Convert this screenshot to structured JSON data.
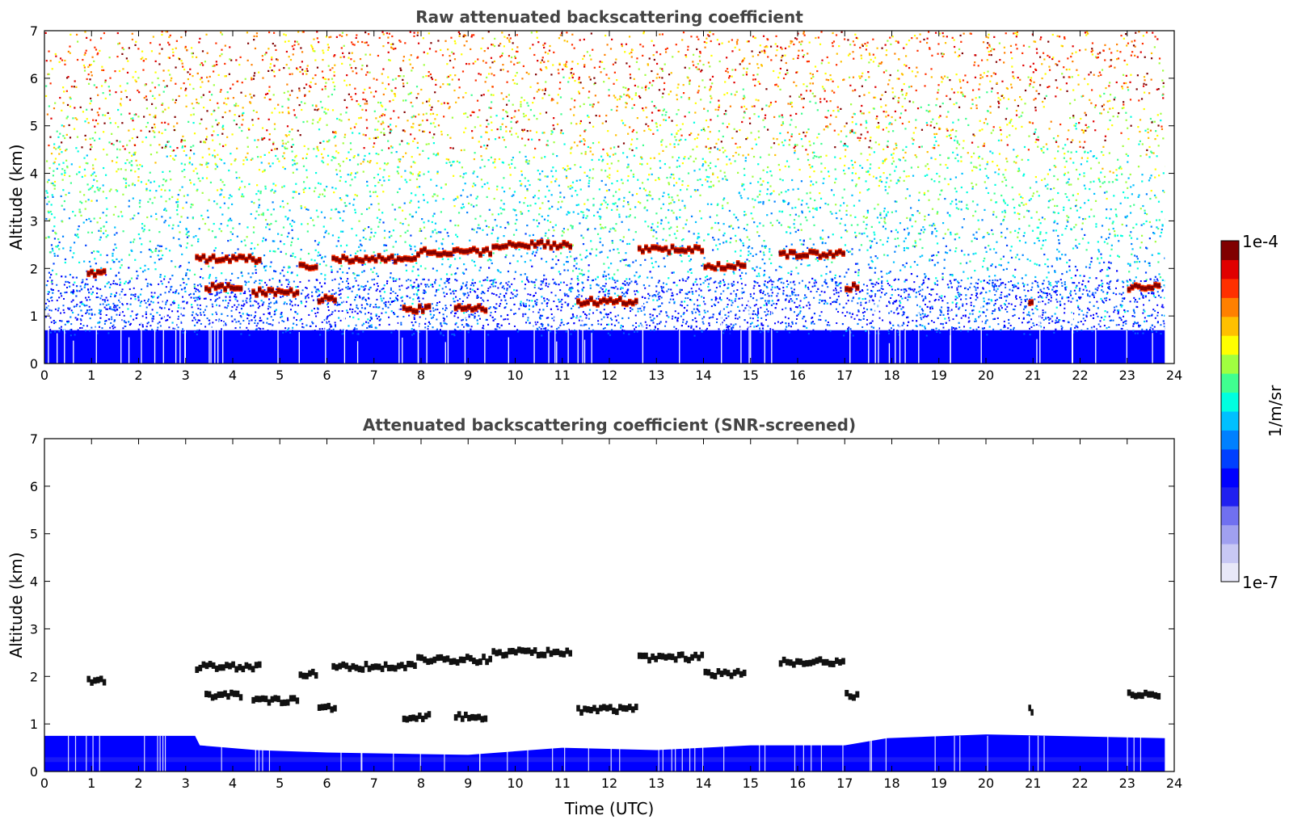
{
  "chart_data": [
    {
      "type": "heatmap",
      "title": "Raw attenuated backscattering coefficient",
      "xlabel": "",
      "ylabel": "Altitude (km)",
      "xlim": [
        0,
        24
      ],
      "ylim": [
        0,
        7
      ],
      "xticks": [
        0,
        1,
        2,
        3,
        4,
        5,
        6,
        7,
        8,
        9,
        10,
        11,
        12,
        13,
        14,
        15,
        16,
        17,
        18,
        19,
        20,
        21,
        22,
        23,
        24
      ],
      "yticks": [
        0,
        1,
        2,
        3,
        4,
        5,
        6,
        7
      ],
      "data_end_time": 23.8,
      "layers": [
        {
          "t": [
            0.9,
            1.3
          ],
          "alt": 1.9
        },
        {
          "t": [
            3.2,
            4.6
          ],
          "alt": 2.2
        },
        {
          "t": [
            5.4,
            5.8
          ],
          "alt": 2.05
        },
        {
          "t": [
            6.1,
            7.9
          ],
          "alt": 2.2
        },
        {
          "t": [
            7.9,
            9.5
          ],
          "alt": 2.35
        },
        {
          "t": [
            9.5,
            11.2
          ],
          "alt": 2.5
        },
        {
          "t": [
            12.6,
            14.0
          ],
          "alt": 2.4
        },
        {
          "t": [
            14.0,
            14.9
          ],
          "alt": 2.05
        },
        {
          "t": [
            15.6,
            17.0
          ],
          "alt": 2.3
        },
        {
          "t": [
            3.4,
            4.2
          ],
          "alt": 1.6
        },
        {
          "t": [
            4.4,
            5.4
          ],
          "alt": 1.5
        },
        {
          "t": [
            5.8,
            6.2
          ],
          "alt": 1.35
        },
        {
          "t": [
            7.6,
            8.2
          ],
          "alt": 1.15
        },
        {
          "t": [
            8.7,
            9.4
          ],
          "alt": 1.15
        },
        {
          "t": [
            11.3,
            12.6
          ],
          "alt": 1.3
        },
        {
          "t": [
            17.0,
            17.3
          ],
          "alt": 1.6
        },
        {
          "t": [
            20.9,
            21.0
          ],
          "alt": 1.3
        },
        {
          "t": [
            23.0,
            23.7
          ],
          "alt": 1.6
        }
      ]
    },
    {
      "type": "heatmap",
      "title": "Attenuated backscattering coefficient (SNR-screened)",
      "xlabel": "Time (UTC)",
      "ylabel": "Altitude (km)",
      "xlim": [
        0,
        24
      ],
      "ylim": [
        0,
        7
      ],
      "xticks": [
        0,
        1,
        2,
        3,
        4,
        5,
        6,
        7,
        8,
        9,
        10,
        11,
        12,
        13,
        14,
        15,
        16,
        17,
        18,
        19,
        20,
        21,
        22,
        23,
        24
      ],
      "yticks": [
        0,
        1,
        2,
        3,
        4,
        5,
        6,
        7
      ],
      "boundary_layer_top": [
        {
          "t": 0,
          "alt": 0.75
        },
        {
          "t": 3.2,
          "alt": 0.75
        },
        {
          "t": 3.3,
          "alt": 0.55
        },
        {
          "t": 4.5,
          "alt": 0.45
        },
        {
          "t": 6.0,
          "alt": 0.4
        },
        {
          "t": 9.0,
          "alt": 0.35
        },
        {
          "t": 11.0,
          "alt": 0.5
        },
        {
          "t": 13.0,
          "alt": 0.45
        },
        {
          "t": 15.0,
          "alt": 0.55
        },
        {
          "t": 17.0,
          "alt": 0.55
        },
        {
          "t": 17.9,
          "alt": 0.7
        },
        {
          "t": 20.0,
          "alt": 0.78
        },
        {
          "t": 23.8,
          "alt": 0.7
        }
      ]
    }
  ],
  "colorbar": {
    "label": "1/m/sr",
    "max_label": "1e-4",
    "min_label": "1e-7",
    "colors": [
      "#e8e8f8",
      "#c8c8f4",
      "#a0a0f0",
      "#7070f0",
      "#2020f0",
      "#0000ff",
      "#0040ff",
      "#0080ff",
      "#00c0ff",
      "#00ffe0",
      "#40ff90",
      "#a0ff40",
      "#ffff00",
      "#ffc000",
      "#ff8000",
      "#ff3000",
      "#e00000",
      "#800000"
    ]
  }
}
